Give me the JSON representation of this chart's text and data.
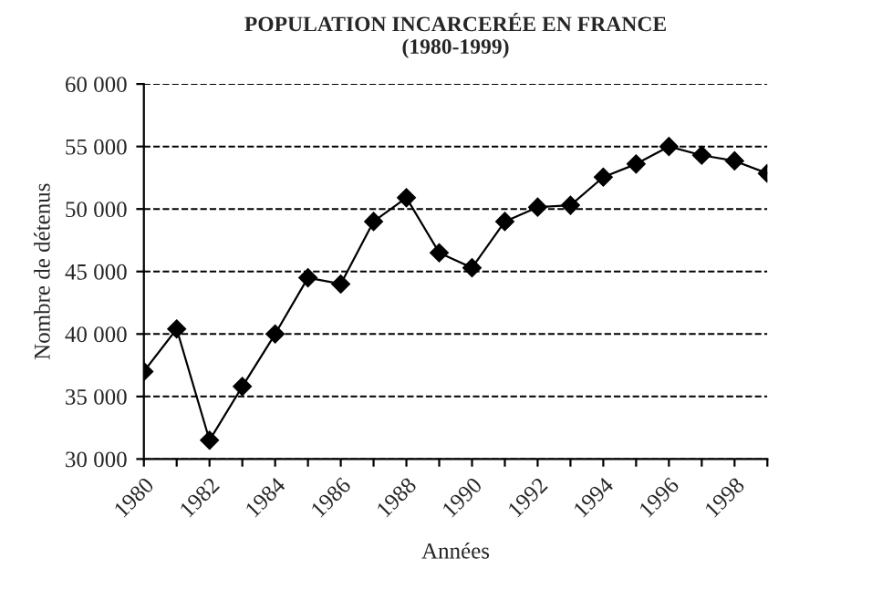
{
  "chart_data": {
    "type": "line",
    "title": "POPULATION INCARCERÉE EN FRANCE\n(1980-1999)",
    "xlabel": "Années",
    "ylabel": "Nombre de détenus",
    "categories": [
      "1980",
      null,
      "1982",
      null,
      "1984",
      null,
      "1986",
      null,
      "1988",
      null,
      "1990",
      null,
      "1992",
      null,
      "1994",
      null,
      "1996",
      null,
      "1998",
      null
    ],
    "series": [
      {
        "color": "#000000",
        "values": [
          37000,
          40400,
          31500,
          35800,
          40000,
          44500,
          44000,
          49000,
          50900,
          46500,
          45300,
          49000,
          50150,
          50300,
          52550,
          53600,
          55000,
          54300,
          53850,
          52850
        ]
      }
    ],
    "ylim": [
      30000,
      60000
    ],
    "yticks": [
      {
        "value": 30000,
        "label": "30 000"
      },
      {
        "value": 35000,
        "label": "35 000"
      },
      {
        "value": 40000,
        "label": "40 000"
      },
      {
        "value": 45000,
        "label": "45 000"
      },
      {
        "value": 50000,
        "label": "50 000"
      },
      {
        "value": 55000,
        "label": "55 000"
      },
      {
        "value": 60000,
        "label": "60 000"
      }
    ],
    "grid": "y",
    "marker": "diamond",
    "line_style": "solid",
    "legend": false
  }
}
